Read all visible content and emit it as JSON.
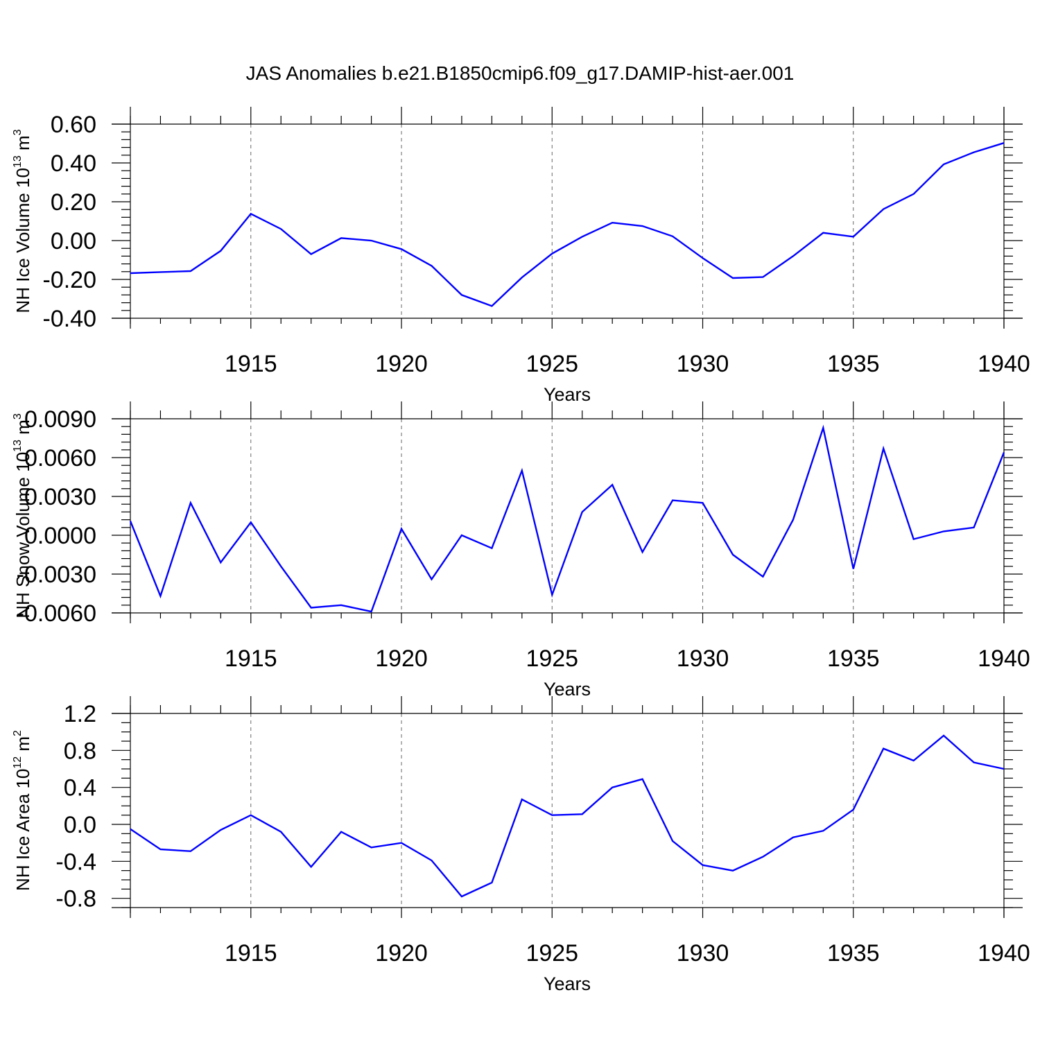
{
  "title": "JAS Anomalies b.e21.B1850cmip6.f09_g17.DAMIP-hist-aer.001",
  "colors": {
    "series": "#0000ff",
    "axis": "#000000",
    "grid": "#666666"
  },
  "chart_data": [
    {
      "type": "line",
      "title": "JAS Anomalies b.e21.B1850cmip6.f09_g17.DAMIP-hist-aer.001",
      "xlabel": "Years",
      "ylabel": "NH Ice Volume 10",
      "ylabel_exp": "13",
      "ylabel_unit": " m",
      "ylabel_unit_exp": "3",
      "xlim": [
        1911,
        1940
      ],
      "ylim": [
        -0.4,
        0.6
      ],
      "xticks": [
        1915,
        1920,
        1925,
        1930,
        1935,
        1940
      ],
      "xtick_labels": [
        "1915",
        "1920",
        "1925",
        "1930",
        "1935",
        "1940"
      ],
      "yticks": [
        -0.4,
        -0.2,
        0.0,
        0.2,
        0.4,
        0.6
      ],
      "ytick_labels": [
        "-0.40",
        "-0.20",
        "0.00",
        "0.20",
        "0.40",
        "0.60"
      ],
      "y_minor_step": 0.04,
      "x_minor_step": 1,
      "grid": "vertical dashed at major x ticks",
      "x": [
        1911,
        1912,
        1913,
        1914,
        1915,
        1916,
        1917,
        1918,
        1919,
        1920,
        1921,
        1922,
        1923,
        1924,
        1925,
        1926,
        1927,
        1928,
        1929,
        1930,
        1931,
        1932,
        1933,
        1934,
        1935,
        1936,
        1937,
        1938,
        1939,
        1940
      ],
      "series": [
        {
          "name": "NH Ice Volume",
          "values": [
            -0.168,
            -0.162,
            -0.157,
            -0.053,
            0.138,
            0.06,
            -0.07,
            0.013,
            0.0,
            -0.044,
            -0.13,
            -0.28,
            -0.337,
            -0.19,
            -0.067,
            0.02,
            0.092,
            0.075,
            0.022,
            -0.09,
            -0.193,
            -0.188,
            -0.08,
            0.04,
            0.02,
            0.162,
            0.24,
            0.393,
            0.455,
            0.503
          ]
        }
      ]
    },
    {
      "type": "line",
      "xlabel": "Years",
      "ylabel": "NH Snow Volume 10",
      "ylabel_exp": "13",
      "ylabel_unit": " m",
      "ylabel_unit_exp": "3",
      "xlim": [
        1911,
        1940
      ],
      "ylim": [
        -0.006,
        0.009
      ],
      "xticks": [
        1915,
        1920,
        1925,
        1930,
        1935,
        1940
      ],
      "xtick_labels": [
        "1915",
        "1920",
        "1925",
        "1930",
        "1935",
        "1940"
      ],
      "yticks": [
        -0.006,
        -0.003,
        0.0,
        0.003,
        0.006,
        0.009
      ],
      "ytick_labels": [
        "-0.0060",
        "-0.0030",
        "0.0000",
        "0.0030",
        "0.0060",
        "0.0090"
      ],
      "y_minor_step": 0.0006,
      "x_minor_step": 1,
      "grid": "vertical dashed at major x ticks",
      "x": [
        1911,
        1912,
        1913,
        1914,
        1915,
        1916,
        1917,
        1918,
        1919,
        1920,
        1921,
        1922,
        1923,
        1924,
        1925,
        1926,
        1927,
        1928,
        1929,
        1930,
        1931,
        1932,
        1933,
        1934,
        1935,
        1936,
        1937,
        1938,
        1939,
        1940
      ],
      "series": [
        {
          "name": "NH Snow Volume",
          "values": [
            0.0011,
            -0.0047,
            0.0025,
            -0.0021,
            0.001,
            -0.0024,
            -0.0056,
            -0.0054,
            -0.0059,
            0.0005,
            -0.0034,
            0.0,
            -0.001,
            0.005,
            -0.0046,
            0.0018,
            0.0039,
            -0.0013,
            0.0027,
            0.0025,
            -0.0015,
            -0.0032,
            0.0012,
            0.0083,
            -0.0026,
            0.0067,
            -0.0003,
            0.0003,
            0.0006,
            0.0064
          ]
        }
      ]
    },
    {
      "type": "line",
      "xlabel": "Years",
      "ylabel": "NH Ice Area 10",
      "ylabel_exp": "12",
      "ylabel_unit": " m",
      "ylabel_unit_exp": "2",
      "xlim": [
        1911,
        1940
      ],
      "ylim": [
        -0.9,
        1.2
      ],
      "xticks": [
        1915,
        1920,
        1925,
        1930,
        1935,
        1940
      ],
      "xtick_labels": [
        "1915",
        "1920",
        "1925",
        "1930",
        "1935",
        "1940"
      ],
      "yticks": [
        -0.8,
        -0.4,
        0.0,
        0.4,
        0.8,
        1.2
      ],
      "ytick_labels": [
        "-0.8",
        "-0.4",
        "0.0",
        "0.4",
        "0.8",
        "1.2"
      ],
      "y_minor_step": 0.1,
      "x_minor_step": 1,
      "grid": "vertical dashed at major x ticks",
      "x": [
        1911,
        1912,
        1913,
        1914,
        1915,
        1916,
        1917,
        1918,
        1919,
        1920,
        1921,
        1922,
        1923,
        1924,
        1925,
        1926,
        1927,
        1928,
        1929,
        1930,
        1931,
        1932,
        1933,
        1934,
        1935,
        1936,
        1937,
        1938,
        1939,
        1940
      ],
      "series": [
        {
          "name": "NH Ice Area",
          "values": [
            -0.05,
            -0.27,
            -0.29,
            -0.06,
            0.1,
            -0.08,
            -0.46,
            -0.08,
            -0.25,
            -0.2,
            -0.39,
            -0.78,
            -0.63,
            0.27,
            0.1,
            0.11,
            0.4,
            0.49,
            -0.18,
            -0.44,
            -0.5,
            -0.35,
            -0.14,
            -0.07,
            0.16,
            0.82,
            0.69,
            0.96,
            0.67,
            0.6
          ]
        }
      ]
    }
  ]
}
